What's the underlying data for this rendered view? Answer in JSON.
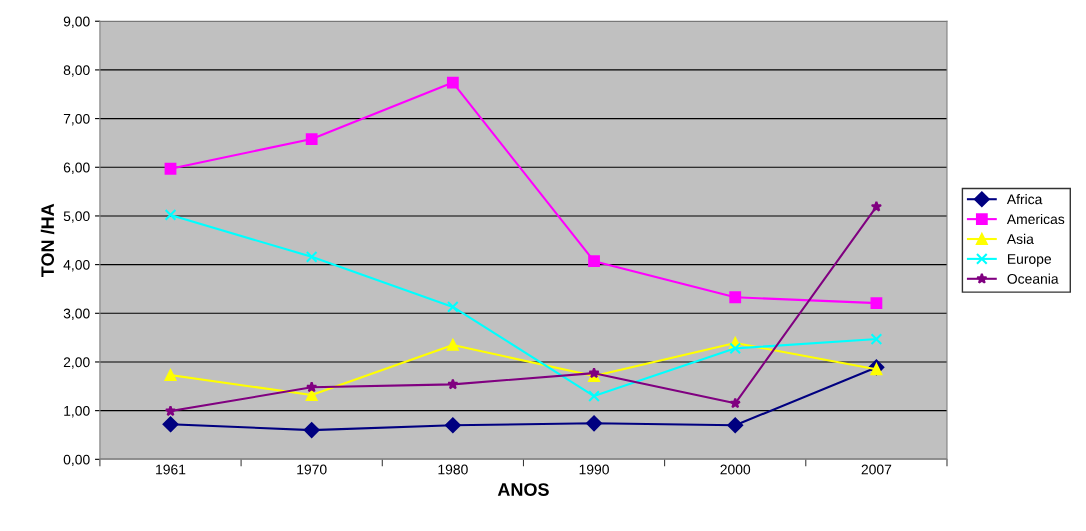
{
  "chart_data": {
    "type": "line",
    "xlabel": "ANOS",
    "ylabel": "TON /HA",
    "categories": [
      "1961",
      "1970",
      "1980",
      "1990",
      "2000",
      "2007"
    ],
    "series": [
      {
        "name": "Africa",
        "color": "#000080",
        "marker": "diamond",
        "values": [
          0.72,
          0.6,
          0.7,
          0.74,
          0.7,
          1.89
        ]
      },
      {
        "name": "Americas",
        "color": "#ff00ff",
        "marker": "square",
        "values": [
          5.97,
          6.58,
          7.74,
          4.07,
          3.33,
          3.21
        ]
      },
      {
        "name": "Asia",
        "color": "#ffff00",
        "marker": "triangle",
        "values": [
          1.73,
          1.32,
          2.35,
          1.71,
          2.39,
          1.85
        ]
      },
      {
        "name": "Europe",
        "color": "#00ffff",
        "marker": "cross",
        "values": [
          5.02,
          4.16,
          3.13,
          1.3,
          2.28,
          2.47
        ]
      },
      {
        "name": "Oceania",
        "color": "#800080",
        "marker": "star",
        "values": [
          0.99,
          1.48,
          1.54,
          1.77,
          1.15,
          5.19
        ]
      }
    ],
    "ylim": [
      0,
      9
    ],
    "yticks": [
      {
        "value": 0,
        "label": "0,00"
      },
      {
        "value": 1,
        "label": "1,00"
      },
      {
        "value": 2,
        "label": "2,00"
      },
      {
        "value": 3,
        "label": "3,00"
      },
      {
        "value": 4,
        "label": "4,00"
      },
      {
        "value": 5,
        "label": "5,00"
      },
      {
        "value": 6,
        "label": "6,00"
      },
      {
        "value": 7,
        "label": "7,00"
      },
      {
        "value": 8,
        "label": "8,00"
      },
      {
        "value": 9,
        "label": "9,00"
      }
    ],
    "grid": "y",
    "legend": "right"
  }
}
